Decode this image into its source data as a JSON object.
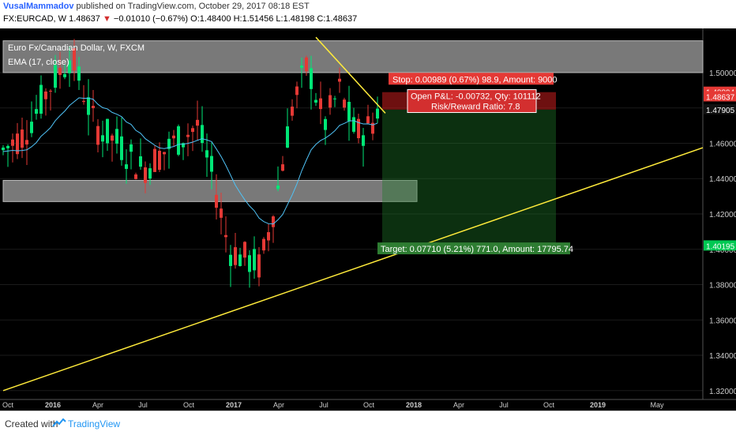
{
  "header": {
    "author": "VusalMammadov",
    "published": "published on TradingView.com, October 29, 2017 08:18 EST",
    "symbol": "FX:EURCAD, W",
    "last": "1.48637",
    "change": "−0.01010 (−0.67%)",
    "open": "O:1.48400",
    "high": "H:1.51456",
    "low": "L:1.48198",
    "close": "C:1.48637"
  },
  "footer": {
    "created": "Created with",
    "brand": "TradingView",
    "logo": "tradingview-logo-icon"
  },
  "chart_data": {
    "type": "candlestick",
    "title": "Euro Fx/Canadian Dollar, W, FXCM",
    "indicator": "EMA (17, close)",
    "ylim": [
      1.315,
      1.525
    ],
    "yticks": [
      "1.50000",
      "1.48000",
      "1.46000",
      "1.44000",
      "1.42000",
      "1.40000",
      "1.38000",
      "1.36000",
      "1.34000",
      "1.32000"
    ],
    "xticks": [
      "Oct",
      "2016",
      "Apr",
      "Jul",
      "Oct",
      "2017",
      "Apr",
      "Jul",
      "Oct",
      "2018",
      "Apr",
      "Jul",
      "Oct",
      "2019",
      "May"
    ],
    "price_tags": [
      {
        "text": "1.48894",
        "color": "#e53935"
      },
      {
        "text": "1.48637",
        "color": "#e53935"
      },
      {
        "text": "1.47905",
        "color": "#ffffff"
      },
      {
        "text": "1.40195",
        "color": "#00c853"
      }
    ],
    "labels": {
      "stop": "Stop: 0.00989 (0.67%) 98.9, Amount: 9000",
      "pnl": "Open P&L: -0.00732, Qty: 101112",
      "rr": "Risk/Reward Ratio: 7.8",
      "target": "Target: 0.07710 (5.21%) 771.0, Amount: 17795.74"
    },
    "zones": [
      {
        "from": 1.5,
        "to": 1.518
      },
      {
        "from": 1.427,
        "to": 1.439
      }
    ],
    "position": {
      "entry": 1.47905,
      "stop": 1.48894,
      "target": 1.40195
    },
    "colors": {
      "up": "#00e676",
      "down": "#e53935",
      "ema": "#4fc3f7",
      "trend": "#ffeb3b"
    }
  }
}
